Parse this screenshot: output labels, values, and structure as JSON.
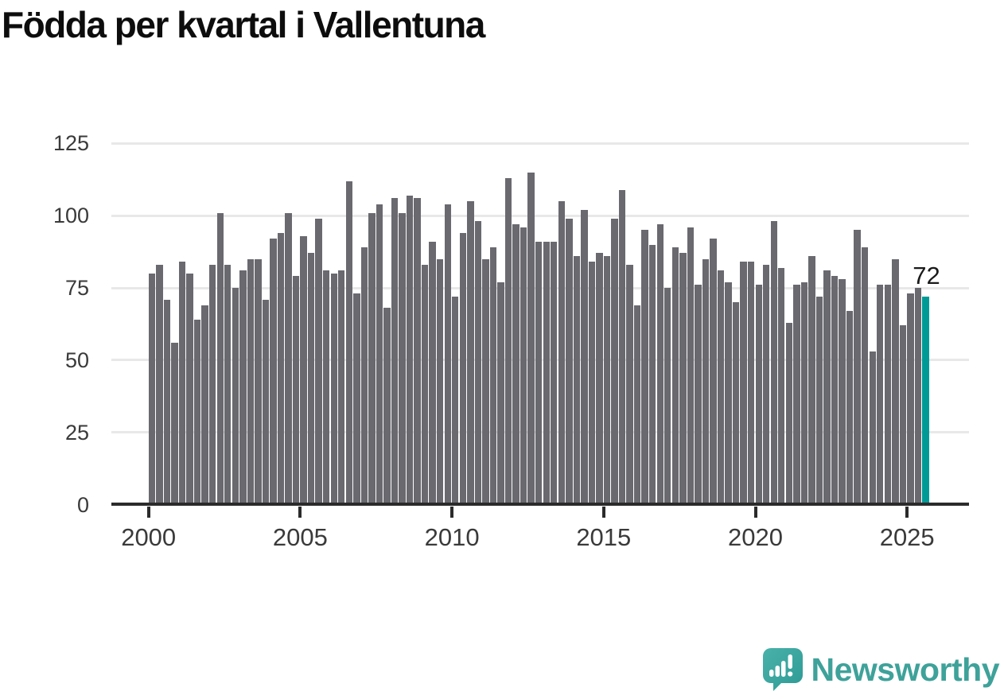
{
  "title": "Födda per kvartal i Vallentuna",
  "branding": {
    "logo_text": "Newsworthy"
  },
  "colors": {
    "bar": "#69696f",
    "highlight": "#009a96",
    "gridline": "#e8e8e8",
    "axis": "#2b2b2b",
    "title_text": "#0d0d0d",
    "axis_text": "#3a3a3a",
    "annotation_text": "#1a1a1a",
    "logo_teal": "#3ea29a"
  },
  "chart_data": {
    "type": "bar",
    "title": "Födda per kvartal i Vallentuna",
    "xlabel": "",
    "ylabel": "",
    "start_quarter": "2000Q1",
    "end_quarter": "2025Q3",
    "quarters_per_year": 4,
    "ylim": [
      0,
      125
    ],
    "yticks": [
      0,
      25,
      50,
      75,
      100,
      125
    ],
    "xticks": [
      2000,
      2005,
      2010,
      2015,
      2020,
      2025
    ],
    "grid": "horizontal",
    "legend": "none",
    "annotation": "72",
    "highlight_last": true,
    "values": [
      80,
      83,
      71,
      56,
      84,
      80,
      64,
      69,
      83,
      101,
      83,
      75,
      81,
      85,
      85,
      71,
      92,
      94,
      101,
      79,
      93,
      87,
      99,
      81,
      80,
      81,
      112,
      73,
      89,
      101,
      104,
      68,
      106,
      101,
      107,
      106,
      83,
      91,
      85,
      104,
      72,
      94,
      105,
      98,
      85,
      89,
      77,
      113,
      97,
      96,
      115,
      91,
      91,
      91,
      105,
      99,
      86,
      102,
      84,
      87,
      86,
      99,
      109,
      83,
      69,
      95,
      90,
      97,
      75,
      89,
      87,
      96,
      76,
      85,
      92,
      81,
      77,
      70,
      84,
      84,
      76,
      83,
      98,
      82,
      63,
      76,
      77,
      86,
      72,
      81,
      79,
      78,
      67,
      95,
      89,
      53,
      76,
      76,
      85,
      62,
      73,
      75,
      72
    ]
  }
}
